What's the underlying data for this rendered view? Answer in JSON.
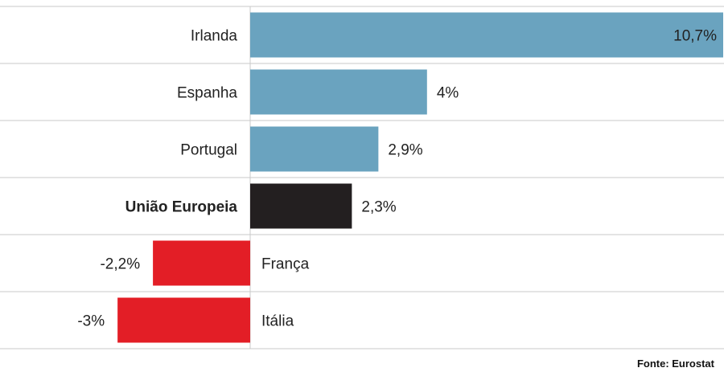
{
  "chart_data": {
    "type": "bar",
    "orientation": "horizontal",
    "categories": [
      "Irlanda",
      "Espanha",
      "Portugal",
      "União Europeia",
      "França",
      "Itália"
    ],
    "values": [
      10.7,
      4,
      2.9,
      2.3,
      -2.2,
      -3
    ],
    "value_labels": [
      "10,7%",
      "4%",
      "2,9%",
      "2,3%",
      "-2,2%",
      "-3%"
    ],
    "highlight": "União Europeia",
    "colors": {
      "positive": "#6aa3bf",
      "highlight": "#231f20",
      "negative": "#e31e26",
      "gridline": "#c8c8c8",
      "value_label_inside": "#ffffff"
    },
    "xlim": [
      -3,
      10.7
    ],
    "grid": true,
    "legend": "none"
  },
  "source": "Fonte: Eurostat"
}
